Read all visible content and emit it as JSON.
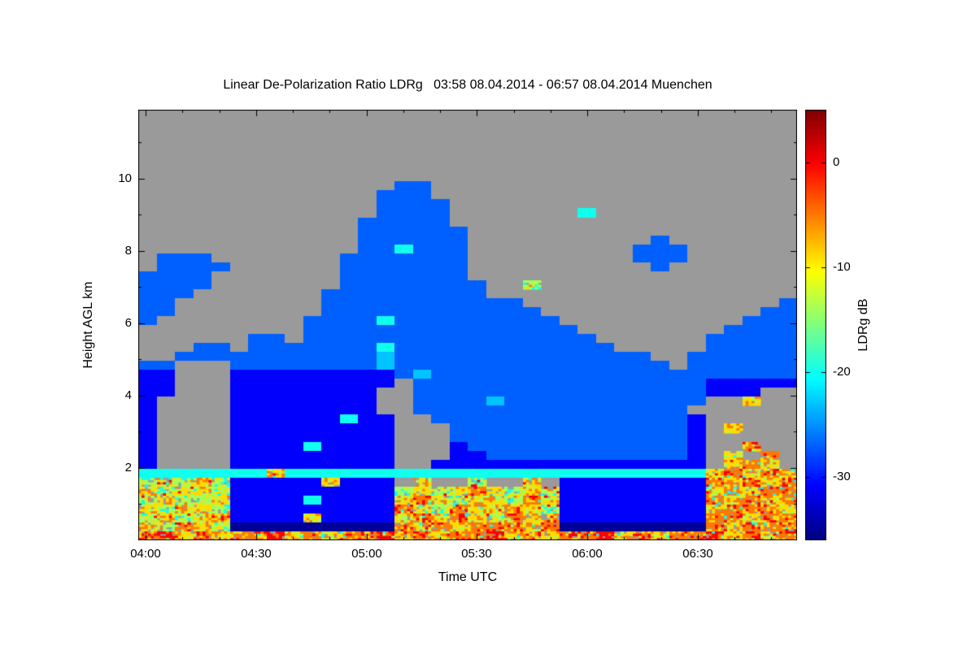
{
  "chart_data": {
    "type": "heatmap",
    "title": "Linear De-Polarization Ratio LDRg   03:58 08.04.2014 - 06:57 08.04.2014 Muenchen",
    "xlabel": "Time UTC",
    "ylabel": "Height AGL km",
    "colorbar_label": "LDRg dB",
    "x_start": "03:58",
    "x_end": "06:57",
    "date": "08.04.2014",
    "station": "Muenchen",
    "x_ticks": [
      "04:00",
      "04:30",
      "05:00",
      "05:30",
      "06:00",
      "06:30"
    ],
    "x_tick_minutes": [
      2,
      32,
      62,
      92,
      122,
      152
    ],
    "x_minor_step_minutes": 10,
    "x_total_minutes": 179,
    "y_ticks": [
      2,
      4,
      6,
      8,
      10
    ],
    "y_minor_step": 1,
    "ylim": [
      0,
      11.9
    ],
    "colorbar_ticks": [
      0,
      -10,
      -20,
      -30
    ],
    "colorbar_tick_labels": [
      "0",
      "-10",
      "-20",
      "-30"
    ],
    "colorbar_range": [
      -36,
      5
    ],
    "no_data_color": "#9a9a9a",
    "legend_note": "grid chars -> LDRg dB; '.'=no signal (gray)",
    "value_legend": {
      ".": null,
      "n": -35,
      "b": -31,
      "B": -27,
      "L": -23,
      "c": -20,
      "g": -14,
      "y": -9,
      "o": -5,
      "r": 0
    },
    "speckle_chars": "gyor",
    "grid_rows": 48,
    "grid_cols": 36,
    "grid": [
      "....................................",
      "....................................",
      "....................................",
      "....................................",
      "....................................",
      "....................................",
      "....................................",
      "....................................",
      "..............BB....................",
      ".............BBB....................",
      ".............BBBB...................",
      ".............BBBB.......c...........",
      "............BBBBB...................",
      "............BBBBBB..................",
      "............BBBBBB..........B.......",
      "............BBcBBB.........BBB......",
      ".BBB.......BBBBBBB.........BBB......",
      ".BBBB......BBBBBBB..........B.......",
      "BBBB.......BBBBBBB..................",
      "BBBB.......BBBBBBBB..g..............",
      "BBB.......BBBBBBBBB.................",
      "BB........BBBBBBBBBBB..............B",
      "BB........BBBBBBBBBBBB............BB",
      "B........BBBBcBBBBBBBBB..........BBB",
      ".........BBBBBBBBBBBBBBB........BBBB",
      "......BB.BBBBBBBBBBBBBBBB......BBBBB",
      "...BB.BBBBBBBcBBBBBBBBBBBB.....BBBBB",
      "..BBBBBBBBBBBLBBBBBBBBBBBBBB..BBBBBB",
      "BB...BBBBBBBBLBBBBBBBBBBBBBBB.BBBBBB",
      "bb...bbbbbbbbbBLBBBBBBBBBBBBBBBBBBBB",
      "bb...bbbbbbbbb.BBBBBBBBBBBBBBBBbbbbb",
      "bb...bbbbbbbb..BBBBBBBBBBBBBBBBbbb..",
      "b....bbbbbbbb..BBBBLBBBBBBBBBBB..y..",
      "b....bbbbbbbb..BBBBBBBBBBBBBBB......",
      "b....bbbbbbcbb..BBBBBBBBBBBBBBb.....",
      "b....bbbbbbbbb...BBBBBBBBBBBBBb.y...",
      "b....bbbbbbbbb...BBBBBBBBBBBBBb.....",
      "b....bbbbcbbbb...bBBBBBBBBBBBBb..o..",
      "b....bbbbbbbbb...bbBBBBBBBBBBBb.y.o.",
      "b....bbbbbbbbb..bbbbbbbbbbbbbbb.yoy.",
      "cccccccycccccccccccccccccccccccyoyoy",
      "gygygbbbbbybbb.y..g..y.bbbbbbbboyoyo",
      "ygyygbbbbbbbbbgygyoygygbbbbbbbbyoyoo",
      "gyggybbbbcbbbbyoygyygoybbbbbbbboyoyo",
      "ygyygbbbbbbbbboygoyyoygbbbbbbbbyoooy",
      "gygyobbbbybbbbyoyoygoyobbbbbbbbooyoo",
      "ygoygnnnnnnnnnoyoyoooyonnnnnnnnoyooo",
      "oryoyooryoyooryoyooryoyooryoyooryoyo"
    ]
  }
}
